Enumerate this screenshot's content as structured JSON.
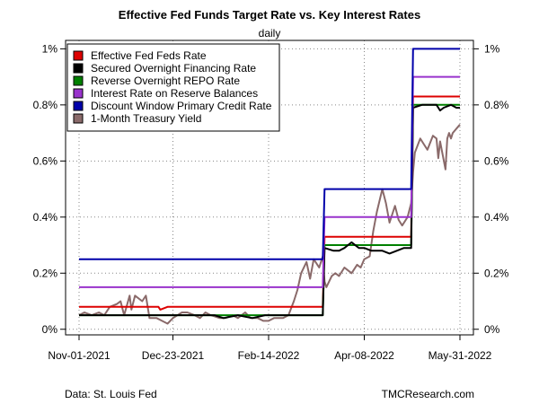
{
  "chart_data": {
    "type": "line",
    "title": "Effective Fed Funds Target Rate vs. Key Interest Rates",
    "subtitle": "daily",
    "source": "Data: St. Louis Fed",
    "credit": "TMCResearch.com",
    "x_range": [
      "2021-11-01",
      "2022-05-31"
    ],
    "x_ticks": [
      {
        "date": "2021-11-01",
        "label": "Nov-01-2021"
      },
      {
        "date": "2021-12-23",
        "label": "Dec-23-2021"
      },
      {
        "date": "2022-02-14",
        "label": "Feb-14-2022"
      },
      {
        "date": "2022-04-08",
        "label": "Apr-08-2022"
      },
      {
        "date": "2022-05-31",
        "label": "May-31-2022"
      }
    ],
    "ylim": [
      -0.02,
      1.03
    ],
    "y_ticks": [
      {
        "value": 0,
        "label": "0%"
      },
      {
        "value": 0.2,
        "label": "0.2%"
      },
      {
        "value": 0.4,
        "label": "0.4%"
      },
      {
        "value": 0.6,
        "label": "0.6%"
      },
      {
        "value": 0.8,
        "label": "0.8%"
      },
      {
        "value": 1.0,
        "label": "1%"
      }
    ],
    "grid": true,
    "legend_position": "top-left",
    "series": [
      {
        "name": "Effective Fed Feds Rate",
        "color": "#dd0000",
        "points": [
          [
            "2021-11-01",
            0.08
          ],
          [
            "2021-12-15",
            0.08
          ],
          [
            "2021-12-16",
            0.07
          ],
          [
            "2021-12-20",
            0.08
          ],
          [
            "2022-03-16",
            0.08
          ],
          [
            "2022-03-17",
            0.33
          ],
          [
            "2022-05-04",
            0.33
          ],
          [
            "2022-05-05",
            0.83
          ],
          [
            "2022-05-31",
            0.83
          ]
        ]
      },
      {
        "name": "Secured Overnight Financing Rate",
        "color": "#000000",
        "points": [
          [
            "2021-11-01",
            0.05
          ],
          [
            "2021-11-15",
            0.05
          ],
          [
            "2021-11-20",
            0.05
          ],
          [
            "2021-12-01",
            0.05
          ],
          [
            "2021-12-10",
            0.05
          ],
          [
            "2021-12-20",
            0.05
          ],
          [
            "2021-12-28",
            0.05
          ],
          [
            "2022-01-05",
            0.05
          ],
          [
            "2022-01-15",
            0.05
          ],
          [
            "2022-01-20",
            0.04
          ],
          [
            "2022-01-28",
            0.05
          ],
          [
            "2022-02-05",
            0.04
          ],
          [
            "2022-02-12",
            0.05
          ],
          [
            "2022-02-20",
            0.05
          ],
          [
            "2022-03-01",
            0.05
          ],
          [
            "2022-03-08",
            0.05
          ],
          [
            "2022-03-16",
            0.05
          ],
          [
            "2022-03-17",
            0.29
          ],
          [
            "2022-03-22",
            0.28
          ],
          [
            "2022-03-25",
            0.28
          ],
          [
            "2022-03-28",
            0.29
          ],
          [
            "2022-04-01",
            0.31
          ],
          [
            "2022-04-05",
            0.29
          ],
          [
            "2022-04-08",
            0.29
          ],
          [
            "2022-04-12",
            0.28
          ],
          [
            "2022-04-18",
            0.28
          ],
          [
            "2022-04-22",
            0.27
          ],
          [
            "2022-04-26",
            0.28
          ],
          [
            "2022-04-30",
            0.29
          ],
          [
            "2022-05-04",
            0.29
          ],
          [
            "2022-05-05",
            0.79
          ],
          [
            "2022-05-10",
            0.8
          ],
          [
            "2022-05-14",
            0.8
          ],
          [
            "2022-05-18",
            0.8
          ],
          [
            "2022-05-20",
            0.78
          ],
          [
            "2022-05-22",
            0.79
          ],
          [
            "2022-05-26",
            0.8
          ],
          [
            "2022-05-29",
            0.79
          ],
          [
            "2022-05-31",
            0.79
          ]
        ]
      },
      {
        "name": "Reverse Overnight REPO Rate",
        "color": "#008000",
        "points": [
          [
            "2021-11-01",
            0.05
          ],
          [
            "2022-03-16",
            0.05
          ],
          [
            "2022-03-17",
            0.3
          ],
          [
            "2022-05-04",
            0.3
          ],
          [
            "2022-05-05",
            0.8
          ],
          [
            "2022-05-31",
            0.8
          ]
        ]
      },
      {
        "name": "Interest Rate on Reserve Balances",
        "color": "#9933cc",
        "points": [
          [
            "2021-11-01",
            0.15
          ],
          [
            "2022-03-16",
            0.15
          ],
          [
            "2022-03-17",
            0.4
          ],
          [
            "2022-05-04",
            0.4
          ],
          [
            "2022-05-05",
            0.9
          ],
          [
            "2022-05-31",
            0.9
          ]
        ]
      },
      {
        "name": "Discount Window Primary Credit Rate",
        "color": "#0000aa",
        "points": [
          [
            "2021-11-01",
            0.25
          ],
          [
            "2022-03-16",
            0.25
          ],
          [
            "2022-03-17",
            0.5
          ],
          [
            "2022-05-04",
            0.5
          ],
          [
            "2022-05-05",
            1.0
          ],
          [
            "2022-05-31",
            1.0
          ]
        ]
      },
      {
        "name": "1-Month Treasury Yield",
        "color": "#8a6a6a",
        "points": [
          [
            "2021-11-01",
            0.05
          ],
          [
            "2021-11-04",
            0.06
          ],
          [
            "2021-11-08",
            0.05
          ],
          [
            "2021-11-12",
            0.06
          ],
          [
            "2021-11-15",
            0.05
          ],
          [
            "2021-11-18",
            0.08
          ],
          [
            "2021-11-22",
            0.09
          ],
          [
            "2021-11-24",
            0.1
          ],
          [
            "2021-11-26",
            0.05
          ],
          [
            "2021-11-29",
            0.12
          ],
          [
            "2021-11-30",
            0.07
          ],
          [
            "2021-12-02",
            0.12
          ],
          [
            "2021-12-06",
            0.1
          ],
          [
            "2021-12-08",
            0.12
          ],
          [
            "2021-12-10",
            0.04
          ],
          [
            "2021-12-14",
            0.04
          ],
          [
            "2021-12-17",
            0.03
          ],
          [
            "2021-12-20",
            0.02
          ],
          [
            "2021-12-23",
            0.04
          ],
          [
            "2021-12-28",
            0.06
          ],
          [
            "2021-12-31",
            0.06
          ],
          [
            "2022-01-04",
            0.05
          ],
          [
            "2022-01-07",
            0.04
          ],
          [
            "2022-01-10",
            0.06
          ],
          [
            "2022-01-13",
            0.05
          ],
          [
            "2022-01-18",
            0.04
          ],
          [
            "2022-01-21",
            0.04
          ],
          [
            "2022-01-25",
            0.05
          ],
          [
            "2022-01-28",
            0.04
          ],
          [
            "2022-02-01",
            0.06
          ],
          [
            "2022-02-04",
            0.04
          ],
          [
            "2022-02-08",
            0.04
          ],
          [
            "2022-02-11",
            0.03
          ],
          [
            "2022-02-14",
            0.03
          ],
          [
            "2022-02-17",
            0.04
          ],
          [
            "2022-02-22",
            0.04
          ],
          [
            "2022-02-25",
            0.05
          ],
          [
            "2022-02-28",
            0.1
          ],
          [
            "2022-03-02",
            0.14
          ],
          [
            "2022-03-04",
            0.2
          ],
          [
            "2022-03-07",
            0.24
          ],
          [
            "2022-03-09",
            0.18
          ],
          [
            "2022-03-11",
            0.25
          ],
          [
            "2022-03-14",
            0.22
          ],
          [
            "2022-03-16",
            0.26
          ],
          [
            "2022-03-17",
            0.17
          ],
          [
            "2022-03-18",
            0.15
          ],
          [
            "2022-03-21",
            0.19
          ],
          [
            "2022-03-23",
            0.2
          ],
          [
            "2022-03-25",
            0.19
          ],
          [
            "2022-03-28",
            0.22
          ],
          [
            "2022-03-30",
            0.21
          ],
          [
            "2022-04-01",
            0.2
          ],
          [
            "2022-04-04",
            0.23
          ],
          [
            "2022-04-06",
            0.22
          ],
          [
            "2022-04-08",
            0.25
          ],
          [
            "2022-04-11",
            0.26
          ],
          [
            "2022-04-13",
            0.35
          ],
          [
            "2022-04-15",
            0.42
          ],
          [
            "2022-04-18",
            0.5
          ],
          [
            "2022-04-20",
            0.45
          ],
          [
            "2022-04-22",
            0.38
          ],
          [
            "2022-04-25",
            0.44
          ],
          [
            "2022-04-27",
            0.39
          ],
          [
            "2022-04-29",
            0.37
          ],
          [
            "2022-05-02",
            0.4
          ],
          [
            "2022-05-04",
            0.45
          ],
          [
            "2022-05-05",
            0.56
          ],
          [
            "2022-05-06",
            0.63
          ],
          [
            "2022-05-09",
            0.68
          ],
          [
            "2022-05-11",
            0.66
          ],
          [
            "2022-05-13",
            0.64
          ],
          [
            "2022-05-16",
            0.69
          ],
          [
            "2022-05-18",
            0.68
          ],
          [
            "2022-05-19",
            0.61
          ],
          [
            "2022-05-20",
            0.67
          ],
          [
            "2022-05-23",
            0.57
          ],
          [
            "2022-05-24",
            0.68
          ],
          [
            "2022-05-25",
            0.7
          ],
          [
            "2022-05-26",
            0.68
          ],
          [
            "2022-05-27",
            0.7
          ],
          [
            "2022-05-31",
            0.73
          ]
        ]
      }
    ]
  }
}
